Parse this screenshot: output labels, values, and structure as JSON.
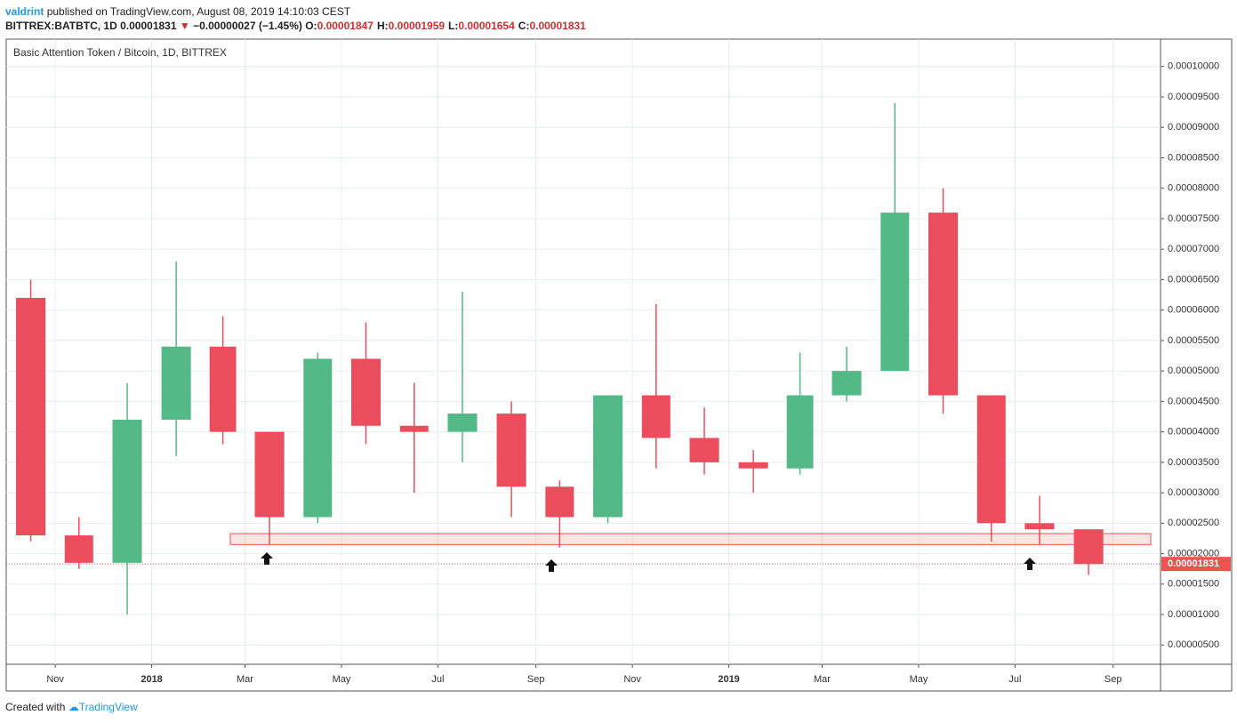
{
  "header": {
    "author": "valdrint",
    "published": "published on TradingView.com, August 08, 2019 14:10:03 CEST",
    "symbol": "BITTREX:BATBTC, 1D",
    "last": "0.00001831",
    "arrow": "▼",
    "change": "−0.00000027 (−1.45%)",
    "ohlc": [
      {
        "label": "O:",
        "value": "0.00001847"
      },
      {
        "label": "H:",
        "value": "0.00001959"
      },
      {
        "label": "L:",
        "value": "0.00001654"
      },
      {
        "label": "C:",
        "value": "0.00001831"
      }
    ]
  },
  "footer": {
    "text": "Created with",
    "brand": "TradingView"
  },
  "chart_data": {
    "type": "candlestick",
    "title": "Basic Attention Token / Bitcoin, 1D, BITTREX",
    "x": [
      "2017-10",
      "2017-11",
      "2017-12",
      "2018-01",
      "2018-02",
      "2018-03",
      "2018-04",
      "2018-05",
      "2018-06",
      "2018-07",
      "2018-08",
      "2018-09",
      "2018-10",
      "2018-11",
      "2018-12",
      "2019-01",
      "2019-02",
      "2019-03",
      "2019-04",
      "2019-05",
      "2019-06",
      "2019-07",
      "2019-08"
    ],
    "open": [
      6.2e-05,
      2.3e-05,
      1.85e-05,
      4.2e-05,
      5.4e-05,
      4e-05,
      2.6e-05,
      5.2e-05,
      4.1e-05,
      4e-05,
      4.3e-05,
      3.1e-05,
      2.6e-05,
      4.6e-05,
      3.9e-05,
      3.5e-05,
      3.4e-05,
      4.6e-05,
      5e-05,
      7.6e-05,
      4.6e-05,
      2.5e-05,
      2.4e-05
    ],
    "high": [
      6.5e-05,
      2.6e-05,
      4.8e-05,
      6.8e-05,
      5.9e-05,
      4e-05,
      5.3e-05,
      5.8e-05,
      4.8e-05,
      6.3e-05,
      4.5e-05,
      3.2e-05,
      4.6e-05,
      6.1e-05,
      4.4e-05,
      3.7e-05,
      5.3e-05,
      5.4e-05,
      9.4e-05,
      8e-05,
      4.6e-05,
      2.95e-05,
      2.4e-05
    ],
    "low": [
      2.2e-05,
      1.75e-05,
      1e-05,
      3.6e-05,
      3.8e-05,
      2.15e-05,
      2.5e-05,
      3.8e-05,
      3e-05,
      3.5e-05,
      2.6e-05,
      2.1e-05,
      2.5e-05,
      3.4e-05,
      3.3e-05,
      3e-05,
      3.3e-05,
      4.5e-05,
      5e-05,
      4.3e-05,
      2.2e-05,
      2.15e-05,
      1.65e-05
    ],
    "close": [
      2.3e-05,
      1.85e-05,
      4.2e-05,
      5.4e-05,
      4e-05,
      2.6e-05,
      5.2e-05,
      4.1e-05,
      4e-05,
      4.3e-05,
      3.1e-05,
      2.6e-05,
      4.6e-05,
      3.9e-05,
      3.5e-05,
      3.4e-05,
      4.6e-05,
      5e-05,
      7.6e-05,
      4.6e-05,
      2.5e-05,
      2.4e-05,
      1.831e-05
    ],
    "up_color": "#53b987",
    "down_color": "#eb4d5c",
    "xlim": [
      "2017-10",
      "2019-10"
    ],
    "xticks": [
      {
        "value": "2017-11",
        "label": "Nov"
      },
      {
        "value": "2018-01",
        "label": "2018"
      },
      {
        "value": "2018-03",
        "label": "Mar"
      },
      {
        "value": "2018-05",
        "label": "May"
      },
      {
        "value": "2018-07",
        "label": "Jul"
      },
      {
        "value": "2018-09",
        "label": "Sep"
      },
      {
        "value": "2018-11",
        "label": "Nov"
      },
      {
        "value": "2019-01",
        "label": "2019"
      },
      {
        "value": "2019-03",
        "label": "Mar"
      },
      {
        "value": "2019-05",
        "label": "May"
      },
      {
        "value": "2019-07",
        "label": "Jul"
      },
      {
        "value": "2019-09",
        "label": "Sep"
      }
    ],
    "ylim": [
      1.83e-06,
      0.00010449
    ],
    "yticks": [
      {
        "value": 5e-06,
        "label": "0.00000500"
      },
      {
        "value": 1e-05,
        "label": "0.00001000"
      },
      {
        "value": 1.5e-05,
        "label": "0.00001500"
      },
      {
        "value": 2e-05,
        "label": "0.00002000"
      },
      {
        "value": 2.5e-05,
        "label": "0.00002500"
      },
      {
        "value": 3e-05,
        "label": "0.00003000"
      },
      {
        "value": 3.5e-05,
        "label": "0.00003500"
      },
      {
        "value": 4e-05,
        "label": "0.00004000"
      },
      {
        "value": 4.5e-05,
        "label": "0.00004500"
      },
      {
        "value": 5e-05,
        "label": "0.00005000"
      },
      {
        "value": 5.5e-05,
        "label": "0.00005500"
      },
      {
        "value": 6e-05,
        "label": "0.00006000"
      },
      {
        "value": 6.5e-05,
        "label": "0.00006500"
      },
      {
        "value": 7e-05,
        "label": "0.00007000"
      },
      {
        "value": 7.5e-05,
        "label": "0.00007500"
      },
      {
        "value": 8e-05,
        "label": "0.00008000"
      },
      {
        "value": 8.5e-05,
        "label": "0.00008500"
      },
      {
        "value": 9e-05,
        "label": "0.00009000"
      },
      {
        "value": 9.5e-05,
        "label": "0.00009500"
      },
      {
        "value": 0.0001,
        "label": "0.00010000"
      }
    ],
    "grid": true,
    "last_price": 1.831e-05,
    "last_color": "#ef5350",
    "support_zone": [
      2.15e-05,
      2.33e-05
    ],
    "zone_color": "#ef5350"
  }
}
